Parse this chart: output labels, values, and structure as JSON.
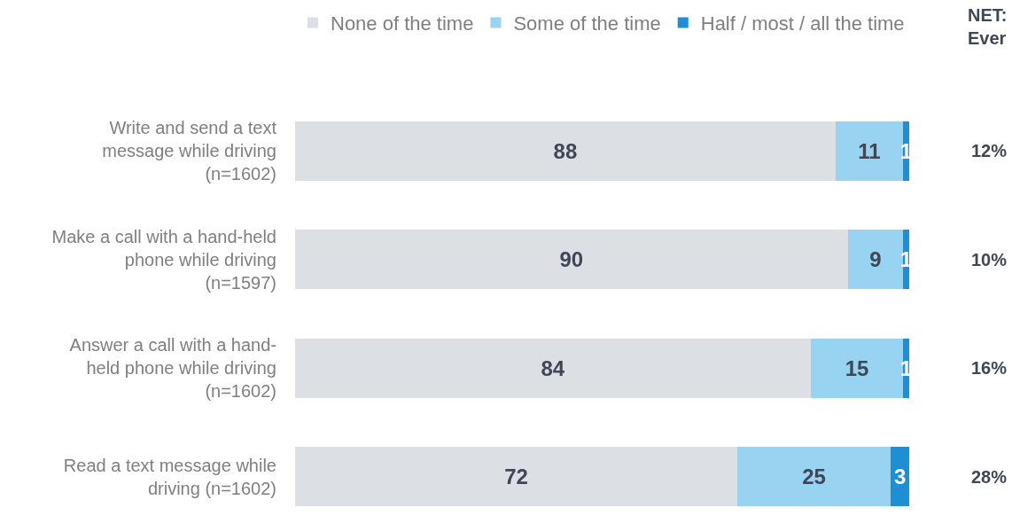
{
  "chart_data": {
    "type": "bar",
    "orientation": "horizontal",
    "stacked": true,
    "data_labels": true,
    "legend": "top",
    "tick_labels": "y",
    "grid": false,
    "xlim": [
      0,
      100
    ],
    "categories": [
      "Write and send a text\nmessage while driving\n(n=1602)",
      "Make a call with a hand-held\nphone while driving\n(n=1597)",
      "Answer a call with a hand-\nheld phone while driving\n(n=1602)",
      "Read a text message while\ndriving (n=1602)"
    ],
    "series": [
      {
        "name": "None of the time",
        "color": "#dcdfe4",
        "values": [
          88,
          90,
          84,
          72
        ]
      },
      {
        "name": "Some of the time",
        "color": "#99d3f2",
        "values": [
          11,
          9,
          15,
          25
        ]
      },
      {
        "name": "Half / most / all the time",
        "color": "#1e8fd5",
        "values": [
          1,
          1,
          1,
          3
        ]
      }
    ],
    "annotations": [
      "NET:\nEver",
      "12%",
      "10%",
      "16%",
      "28%"
    ]
  }
}
